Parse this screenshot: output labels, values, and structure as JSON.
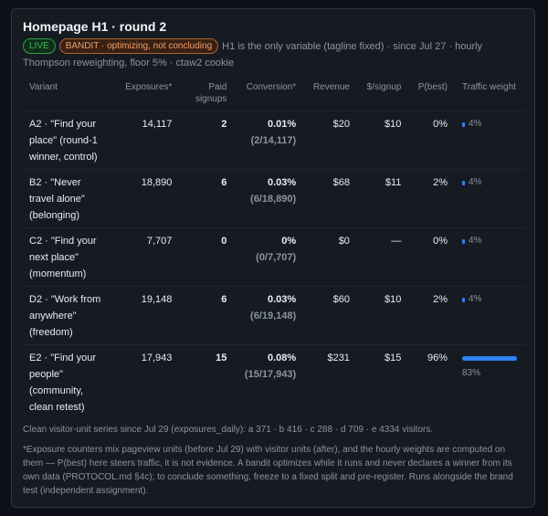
{
  "title": "Homepage H1 · round 2",
  "status_pill": "LIVE",
  "mode_pill": "BANDIT · optimizing, not concluding",
  "subtitle": "H1 is the only variable (tagline fixed) · since Jul 27 · hourly Thompson reweighting, floor 5% · ctaw2 cookie",
  "columns": [
    "Variant",
    "Exposures*",
    "Paid signups",
    "Conversion*",
    "Revenue",
    "$/signup",
    "P(best)",
    "Traffic weight"
  ],
  "rows": [
    {
      "variant": "A2 · \"Find your place\" (round-1 winner, control)",
      "exposures": "14,117",
      "signups": "2",
      "conversion": "0.01%",
      "ratio": "(2/14,117)",
      "revenue": "$20",
      "per_signup": "$10",
      "p_best": "0%",
      "weight_label": "4%",
      "weight": 0.04
    },
    {
      "variant": "B2 · \"Never travel alone\" (belonging)",
      "exposures": "18,890",
      "signups": "6",
      "conversion": "0.03%",
      "ratio": "(6/18,890)",
      "revenue": "$68",
      "per_signup": "$11",
      "p_best": "2%",
      "weight_label": "4%",
      "weight": 0.04
    },
    {
      "variant": "C2 · \"Find your next place\" (momentum)",
      "exposures": "7,707",
      "signups": "0",
      "conversion": "0%",
      "ratio": "(0/7,707)",
      "revenue": "$0",
      "per_signup": "—",
      "p_best": "0%",
      "weight_label": "4%",
      "weight": 0.04
    },
    {
      "variant": "D2 · \"Work from anywhere\" (freedom)",
      "exposures": "19,148",
      "signups": "6",
      "conversion": "0.03%",
      "ratio": "(6/19,148)",
      "revenue": "$60",
      "per_signup": "$10",
      "p_best": "2%",
      "weight_label": "4%",
      "weight": 0.04
    },
    {
      "variant": "E2 · \"Find your people\" (community, clean retest)",
      "exposures": "17,943",
      "signups": "15",
      "conversion": "0.08%",
      "ratio": "(15/17,943)",
      "revenue": "$231",
      "per_signup": "$15",
      "p_best": "96%",
      "weight_label": "83%",
      "weight": 0.83
    }
  ],
  "footnote_1": "Clean visitor-unit series since Jul 29 (exposures_daily): a 371 · b 416 · c 288 · d 709 · e 4334 visitors.",
  "footnote_2": "*Exposure counters mix pageview units (before Jul 29) with visitor units (after), and the hourly weights are computed on them — P(best) here steers traffic, it is not evidence. A bandit optimizes while it runs and never declares a winner from its own data (PROTOCOL.md §4c); to conclude something, freeze to a fixed split and pre-register. Runs alongside the brand test (independent assignment).",
  "colors": {
    "accent": "#2f81f7",
    "live": "#3fb950",
    "bandit": "#f0a070"
  }
}
